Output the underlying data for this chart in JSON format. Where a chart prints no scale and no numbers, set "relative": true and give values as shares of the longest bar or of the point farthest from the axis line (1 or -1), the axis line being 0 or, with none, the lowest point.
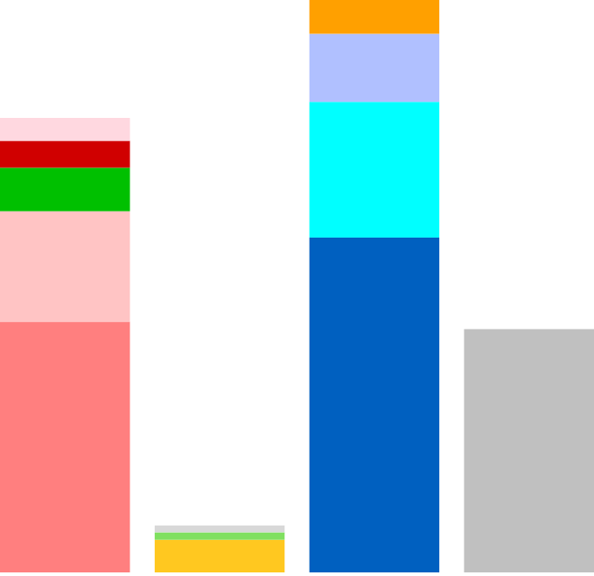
{
  "chart_data": {
    "type": "bar",
    "stacked": true,
    "relative": true,
    "categories": [
      null,
      null,
      null,
      null
    ],
    "series": [
      {
        "color": "#ff7f7f",
        "values": [
          0.438,
          null,
          null,
          null
        ]
      },
      {
        "color": "#ffc4c4",
        "values": [
          0.193,
          null,
          null,
          null
        ]
      },
      {
        "color": "#00c000",
        "values": [
          0.076,
          null,
          null,
          null
        ]
      },
      {
        "color": "#d00000",
        "values": [
          0.047,
          null,
          null,
          null
        ]
      },
      {
        "color": "#ffd8e0",
        "values": [
          0.04,
          null,
          null,
          null
        ]
      },
      {
        "color": "#ffc820",
        "values": [
          null,
          0.057,
          null,
          null
        ]
      },
      {
        "color": "#80e060",
        "values": [
          null,
          0.013,
          null,
          null
        ]
      },
      {
        "color": "#d8d8d8",
        "values": [
          null,
          0.012,
          null,
          null
        ]
      },
      {
        "color": "#0060c0",
        "values": [
          null,
          null,
          0.585,
          null
        ]
      },
      {
        "color": "#00ffff",
        "values": [
          null,
          null,
          0.237,
          null
        ]
      },
      {
        "color": "#b0c0ff",
        "values": [
          null,
          null,
          0.119,
          null
        ]
      },
      {
        "color": "#ffa000",
        "values": [
          null,
          null,
          0.059,
          null
        ]
      },
      {
        "color": "#c0c0c0",
        "values": [
          null,
          null,
          null,
          0.425
        ]
      }
    ]
  }
}
